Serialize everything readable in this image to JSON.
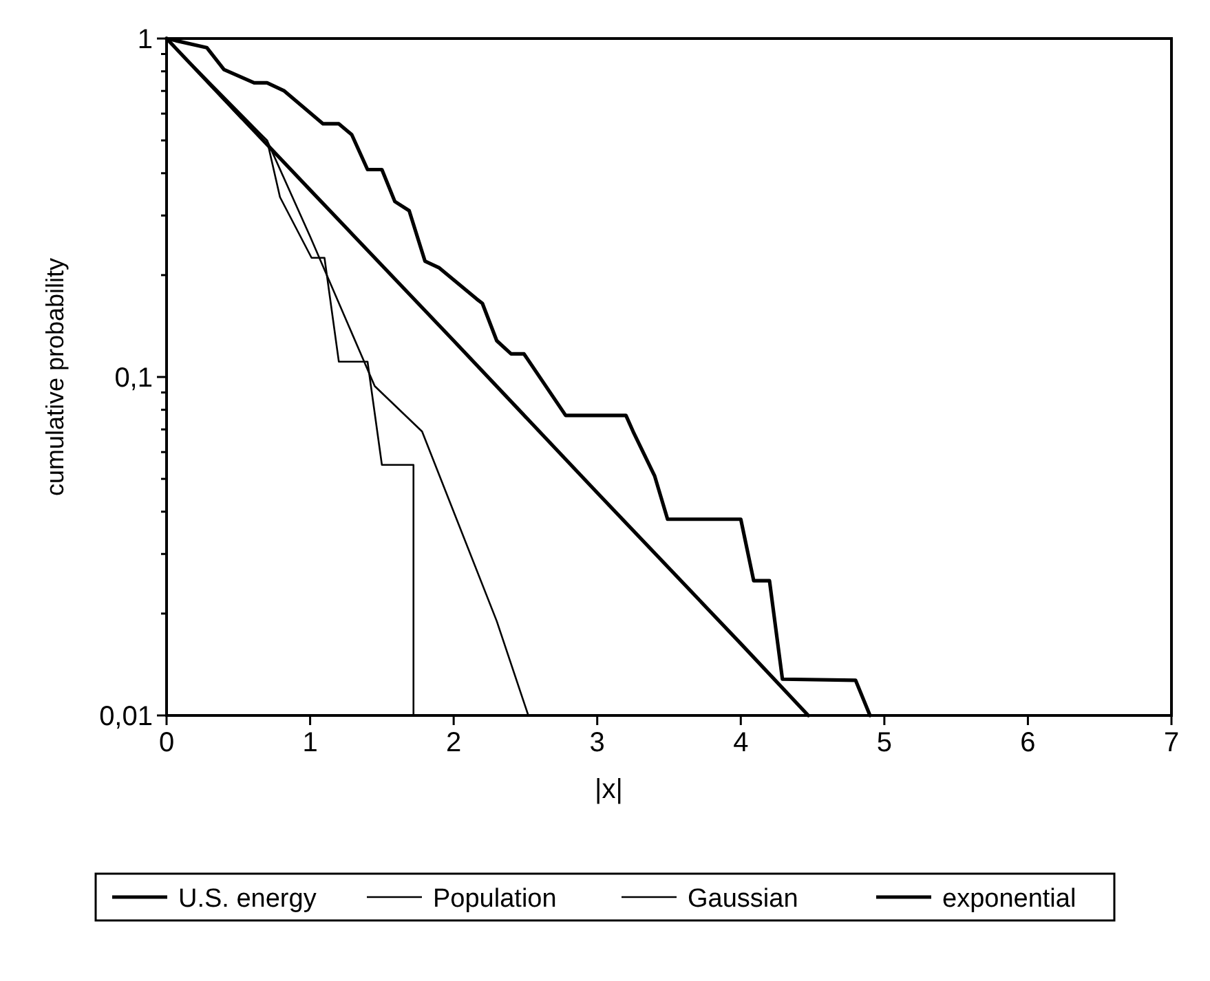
{
  "chart_data": {
    "type": "line",
    "xlabel": "|x|",
    "ylabel": "cumulative probability",
    "log": "y",
    "xlim": [
      0,
      7
    ],
    "xticks": [
      0,
      1,
      2,
      3,
      4,
      5,
      6,
      7
    ],
    "ylim": [
      0.01,
      1
    ],
    "yticks": [
      {
        "value": 0.01,
        "label": "0,01"
      },
      {
        "value": 0.02,
        "label": null
      },
      {
        "value": 0.03,
        "label": null
      },
      {
        "value": 0.04,
        "label": null
      },
      {
        "value": 0.05,
        "label": null
      },
      {
        "value": 0.06,
        "label": null
      },
      {
        "value": 0.07,
        "label": null
      },
      {
        "value": 0.08,
        "label": null
      },
      {
        "value": 0.09,
        "label": null
      },
      {
        "value": 0.1,
        "label": "0,1"
      },
      {
        "value": 0.2,
        "label": null
      },
      {
        "value": 0.3,
        "label": null
      },
      {
        "value": 0.4,
        "label": null
      },
      {
        "value": 0.5,
        "label": null
      },
      {
        "value": 0.6,
        "label": null
      },
      {
        "value": 0.7,
        "label": null
      },
      {
        "value": 0.8,
        "label": null
      },
      {
        "value": 0.9,
        "label": null
      },
      {
        "value": 1,
        "label": "1"
      }
    ],
    "grid": false,
    "legend": "bottom",
    "line_style": "solid",
    "series": [
      {
        "name": "U.S. energy",
        "color": "#000000",
        "x": [
          0,
          0.28,
          0.4,
          0.61,
          0.7,
          0.82,
          1.09,
          1.2,
          1.29,
          1.4,
          1.5,
          1.59,
          1.69,
          1.8,
          1.9,
          2.16,
          2.2,
          2.3,
          2.4,
          2.49,
          2.78,
          3.2,
          3.25,
          3.4,
          3.49,
          4.0,
          4.09,
          4.2,
          4.29,
          4.8,
          4.9
        ],
        "values": [
          1,
          0.94,
          0.81,
          0.74,
          0.74,
          0.7,
          0.56,
          0.56,
          0.52,
          0.41,
          0.41,
          0.33,
          0.31,
          0.22,
          0.21,
          0.17,
          0.165,
          0.128,
          0.117,
          0.117,
          0.077,
          0.077,
          0.069,
          0.051,
          0.038,
          0.038,
          0.025,
          0.025,
          0.0128,
          0.0127,
          0.01
        ]
      },
      {
        "name": "Population",
        "color": "#000000",
        "x": [
          0,
          0.52,
          0.58,
          0.7,
          0.79,
          1.01,
          1.1,
          1.2,
          1.4,
          1.5,
          1.72,
          1.72
        ],
        "values": [
          1,
          0.58,
          0.56,
          0.5,
          0.34,
          0.225,
          0.225,
          0.111,
          0.111,
          0.055,
          0.055,
          0.01
        ]
      },
      {
        "name": "Gaussian",
        "color": "#000000",
        "x": [
          0,
          0.7,
          1.0,
          1.45,
          1.78,
          2.3,
          2.52
        ],
        "values": [
          1,
          0.5,
          0.26,
          0.094,
          0.069,
          0.019,
          0.01
        ]
      },
      {
        "name": "exponential",
        "color": "#000000",
        "x": [
          0,
          1,
          2,
          3,
          4,
          4.47
        ],
        "values": [
          1,
          0.357,
          0.128,
          0.0455,
          0.0163,
          0.01
        ]
      }
    ]
  }
}
